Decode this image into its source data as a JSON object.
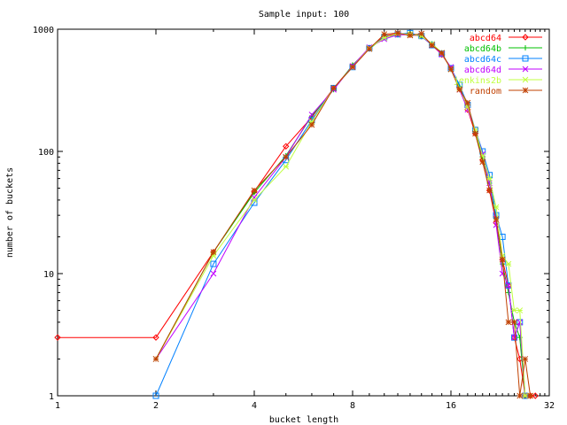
{
  "chart_data": {
    "type": "line",
    "title": "Sample input: 100",
    "xlabel": "bucket length",
    "ylabel": "number of buckets",
    "xscale": "log2",
    "yscale": "log10",
    "xlim": [
      1,
      32
    ],
    "ylim": [
      1,
      1000
    ],
    "x_ticks": [
      1,
      2,
      4,
      8,
      16,
      32
    ],
    "x_tick_labels": [
      "1",
      "2",
      "4",
      "8",
      "16",
      "32"
    ],
    "y_ticks": [
      1,
      10,
      100,
      1000
    ],
    "y_tick_labels": [
      "1",
      "10",
      "100",
      "1000"
    ],
    "grid": false,
    "legend_position": "top-right",
    "series": [
      {
        "name": "abcd64",
        "color": "#ff0000",
        "marker": "diamond",
        "points": [
          [
            1,
            3
          ],
          [
            2,
            3
          ],
          [
            3,
            15
          ],
          [
            4,
            47
          ],
          [
            5,
            110
          ],
          [
            6,
            190
          ],
          [
            7,
            330
          ],
          [
            8,
            500
          ],
          [
            9,
            700
          ],
          [
            10,
            880
          ],
          [
            11,
            920
          ],
          [
            12,
            910
          ],
          [
            13,
            880
          ],
          [
            14,
            740
          ],
          [
            15,
            620
          ],
          [
            16,
            480
          ],
          [
            17,
            330
          ],
          [
            18,
            220
          ],
          [
            19,
            140
          ],
          [
            20,
            85
          ],
          [
            21,
            48
          ],
          [
            22,
            26
          ],
          [
            23,
            13
          ],
          [
            24,
            8
          ],
          [
            25,
            3
          ],
          [
            26,
            2
          ],
          [
            27,
            1
          ],
          [
            28,
            1
          ],
          [
            29,
            1
          ]
        ]
      },
      {
        "name": "abcd64b",
        "color": "#00c000",
        "marker": "plus",
        "points": [
          [
            2,
            2
          ],
          [
            3,
            15
          ],
          [
            4,
            46
          ],
          [
            5,
            92
          ],
          [
            6,
            195
          ],
          [
            7,
            320
          ],
          [
            8,
            510
          ],
          [
            9,
            690
          ],
          [
            10,
            860
          ],
          [
            11,
            900
          ],
          [
            12,
            920
          ],
          [
            13,
            870
          ],
          [
            14,
            760
          ],
          [
            15,
            640
          ],
          [
            16,
            470
          ],
          [
            17,
            340
          ],
          [
            18,
            230
          ],
          [
            19,
            145
          ],
          [
            20,
            90
          ],
          [
            21,
            55
          ],
          [
            22,
            28
          ],
          [
            23,
            12
          ],
          [
            24,
            7
          ],
          [
            25,
            4
          ],
          [
            26,
            3
          ],
          [
            27,
            1
          ]
        ]
      },
      {
        "name": "abcd64c",
        "color": "#0080ff",
        "marker": "square",
        "points": [
          [
            2,
            1
          ],
          [
            3,
            12
          ],
          [
            4,
            38
          ],
          [
            5,
            85
          ],
          [
            6,
            180
          ],
          [
            7,
            330
          ],
          [
            8,
            490
          ],
          [
            9,
            700
          ],
          [
            10,
            860
          ],
          [
            11,
            910
          ],
          [
            12,
            930
          ],
          [
            13,
            880
          ],
          [
            14,
            740
          ],
          [
            15,
            630
          ],
          [
            16,
            480
          ],
          [
            17,
            350
          ],
          [
            18,
            240
          ],
          [
            19,
            150
          ],
          [
            20,
            100
          ],
          [
            21,
            64
          ],
          [
            22,
            30
          ],
          [
            23,
            20
          ],
          [
            24,
            8
          ],
          [
            25,
            3
          ],
          [
            26,
            4
          ],
          [
            27,
            1
          ]
        ]
      },
      {
        "name": "abcd64d",
        "color": "#c000ff",
        "marker": "cross",
        "points": [
          [
            2,
            2
          ],
          [
            3,
            10
          ],
          [
            4,
            42
          ],
          [
            5,
            90
          ],
          [
            6,
            200
          ],
          [
            7,
            320
          ],
          [
            8,
            500
          ],
          [
            9,
            710
          ],
          [
            10,
            830
          ],
          [
            11,
            900
          ],
          [
            12,
            900
          ],
          [
            13,
            880
          ],
          [
            14,
            750
          ],
          [
            15,
            620
          ],
          [
            16,
            490
          ],
          [
            17,
            320
          ],
          [
            18,
            220
          ],
          [
            19,
            150
          ],
          [
            20,
            95
          ],
          [
            21,
            55
          ],
          [
            22,
            25
          ],
          [
            23,
            10
          ],
          [
            24,
            8
          ],
          [
            25,
            3
          ],
          [
            26,
            4
          ],
          [
            27,
            1
          ]
        ]
      },
      {
        "name": "jenkins2b",
        "color": "#c0ff40",
        "marker": "x",
        "points": [
          [
            2,
            2
          ],
          [
            3,
            14
          ],
          [
            4,
            40
          ],
          [
            5,
            75
          ],
          [
            6,
            175
          ],
          [
            7,
            330
          ],
          [
            8,
            490
          ],
          [
            9,
            700
          ],
          [
            10,
            850
          ],
          [
            11,
            920
          ],
          [
            12,
            910
          ],
          [
            13,
            880
          ],
          [
            14,
            760
          ],
          [
            15,
            640
          ],
          [
            16,
            470
          ],
          [
            17,
            330
          ],
          [
            18,
            230
          ],
          [
            19,
            150
          ],
          [
            20,
            92
          ],
          [
            21,
            60
          ],
          [
            22,
            35
          ],
          [
            23,
            14
          ],
          [
            24,
            12
          ],
          [
            25,
            5
          ],
          [
            26,
            5
          ],
          [
            27,
            1
          ],
          [
            28,
            1
          ]
        ]
      },
      {
        "name": "random",
        "color": "#c04000",
        "marker": "star",
        "points": [
          [
            2,
            2
          ],
          [
            3,
            15
          ],
          [
            4,
            48
          ],
          [
            5,
            90
          ],
          [
            6,
            165
          ],
          [
            7,
            330
          ],
          [
            8,
            490
          ],
          [
            9,
            690
          ],
          [
            10,
            910
          ],
          [
            11,
            930
          ],
          [
            12,
            890
          ],
          [
            13,
            920
          ],
          [
            14,
            740
          ],
          [
            15,
            640
          ],
          [
            16,
            470
          ],
          [
            17,
            320
          ],
          [
            18,
            250
          ],
          [
            19,
            140
          ],
          [
            20,
            82
          ],
          [
            21,
            48
          ],
          [
            22,
            28
          ],
          [
            23,
            13
          ],
          [
            24,
            4
          ],
          [
            25,
            4
          ],
          [
            26,
            1
          ],
          [
            27,
            2
          ],
          [
            28,
            1
          ]
        ]
      }
    ]
  }
}
